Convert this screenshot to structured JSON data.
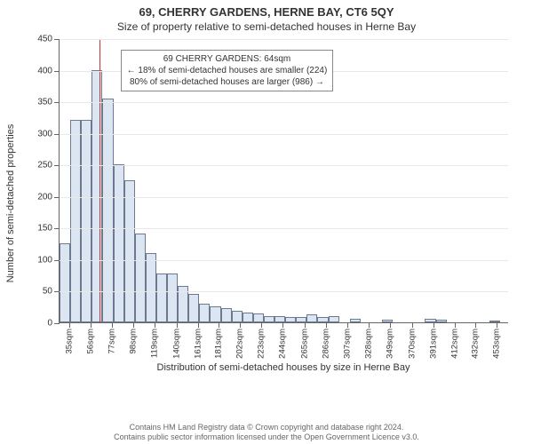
{
  "title": "69, CHERRY GARDENS, HERNE BAY, CT6 5QY",
  "subtitle": "Size of property relative to semi-detached houses in Herne Bay",
  "ylabel": "Number of semi-detached properties",
  "xlabel": "Distribution of semi-detached houses by size in Herne Bay",
  "footer_line1": "Contains HM Land Registry data © Crown copyright and database right 2024.",
  "footer_line2": "Contains public sector information licensed under the Open Government Licence v3.0.",
  "chart": {
    "type": "histogram",
    "ylim": [
      0,
      450
    ],
    "ytick_step": 50,
    "xlim_sqm": [
      25,
      464
    ],
    "bar_fill": "#dce5f2",
    "bar_stroke": "#6b7a8f",
    "grid_color": "#e8e8e8",
    "background_color": "#ffffff",
    "marker_color": "#cc3333",
    "marker_x_sqm": 64,
    "annotation": {
      "line1": "69 CHERRY GARDENS: 64sqm",
      "line2": "← 18% of semi-detached houses are smaller (224)",
      "line3": "80% of semi-detached houses are larger (986) →",
      "x_sqm": 180,
      "y_value": 405
    },
    "xticks_sqm": [
      35,
      56,
      77,
      98,
      119,
      140,
      161,
      181,
      202,
      223,
      244,
      265,
      286,
      307,
      328,
      349,
      370,
      391,
      412,
      432,
      453
    ],
    "bin_start_sqm": 25,
    "bin_width_sqm": 10.5,
    "values": [
      125,
      320,
      320,
      400,
      355,
      250,
      225,
      140,
      110,
      78,
      78,
      58,
      45,
      30,
      25,
      22,
      18,
      15,
      14,
      10,
      10,
      8,
      8,
      12,
      8,
      10,
      0,
      6,
      0,
      0,
      4,
      0,
      0,
      0,
      5,
      4,
      0,
      0,
      0,
      0,
      3
    ]
  }
}
